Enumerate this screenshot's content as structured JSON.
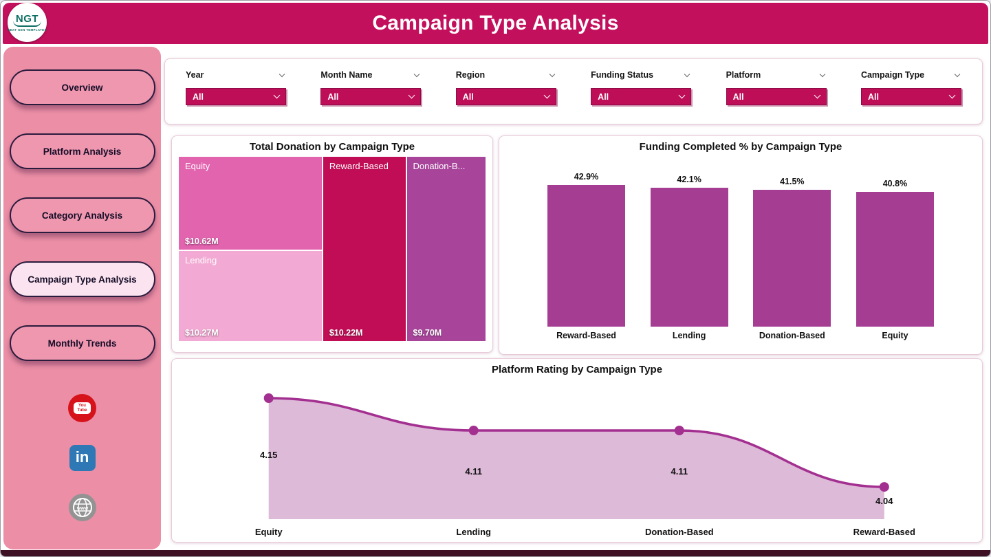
{
  "header": {
    "title": "Campaign Type Analysis"
  },
  "logo": {
    "text": "NGT",
    "subtext": "NEXT GEN TEMPLATES"
  },
  "sidebar": {
    "items": [
      {
        "label": "Overview"
      },
      {
        "label": "Platform Analysis"
      },
      {
        "label": "Category Analysis"
      },
      {
        "label": "Campaign Type Analysis"
      },
      {
        "label": "Monthly Trends"
      }
    ],
    "social": {
      "youtube_line1": "You",
      "youtube_line2": "Tube",
      "linkedin_label": "in",
      "web_label": "www"
    }
  },
  "filters": [
    {
      "label": "Year",
      "value": "All"
    },
    {
      "label": "Month Name",
      "value": "All"
    },
    {
      "label": "Region",
      "value": "All"
    },
    {
      "label": "Funding Status",
      "value": "All"
    },
    {
      "label": "Platform",
      "value": "All"
    },
    {
      "label": "Campaign Type",
      "value": "All"
    }
  ],
  "colors": {
    "header": "#C2105C",
    "sidebar": "#EB8EA6",
    "slicer": "#BE0E58",
    "bar": "#A53D93",
    "line": "#A33090",
    "area_fill": "#DEBAD9"
  },
  "chart_data": [
    {
      "type": "treemap",
      "title": "Total Donation by Campaign Type",
      "items": [
        {
          "label": "Equity",
          "value": 10.62,
          "value_label": "$10.62M",
          "color": "#E263AE"
        },
        {
          "label": "Lending",
          "value": 10.27,
          "value_label": "$10.27M",
          "color": "#F2A9D3"
        },
        {
          "label": "Reward-Based",
          "value": 10.22,
          "value_label": "$10.22M",
          "color": "#C00D55"
        },
        {
          "label": "Donation-B...",
          "value": 9.7,
          "value_label": "$9.70M",
          "color": "#A8459B"
        }
      ]
    },
    {
      "type": "bar",
      "title": "Funding Completed % by Campaign Type",
      "categories": [
        "Reward-Based",
        "Lending",
        "Donation-Based",
        "Equity"
      ],
      "values": [
        42.9,
        42.1,
        41.5,
        40.8
      ],
      "value_labels": [
        "42.9%",
        "42.1%",
        "41.5%",
        "40.8%"
      ],
      "ylim": [
        0,
        45
      ],
      "legend": "none",
      "grid": false
    },
    {
      "type": "area",
      "title": "Platform Rating by Campaign Type",
      "categories": [
        "Equity",
        "Lending",
        "Donation-Based",
        "Reward-Based"
      ],
      "values": [
        4.15,
        4.11,
        4.11,
        4.04
      ],
      "value_labels": [
        "4.15",
        "4.11",
        "4.11",
        "4.04"
      ],
      "ylim": [
        4.0,
        4.2
      ],
      "legend": "none",
      "grid": false
    }
  ]
}
